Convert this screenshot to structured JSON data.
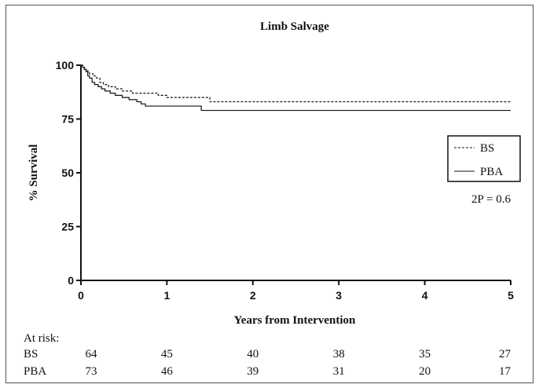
{
  "chart_data": {
    "type": "line",
    "title": "Limb Salvage",
    "xlabel": "Years from Intervention",
    "ylabel": "% Survival",
    "xlim": [
      0,
      5
    ],
    "ylim": [
      0,
      100
    ],
    "x_ticks": [
      "0",
      "1",
      "2",
      "3",
      "4",
      "5"
    ],
    "y_ticks": [
      "0",
      "25",
      "50",
      "75",
      "100"
    ],
    "grid": false,
    "legend_position": "right",
    "annotation": "2P =  0.6",
    "series": [
      {
        "name": "BS",
        "style": "dashed",
        "color": "#111111",
        "points": [
          [
            0,
            100
          ],
          [
            0.02,
            99
          ],
          [
            0.05,
            98
          ],
          [
            0.08,
            97
          ],
          [
            0.1,
            96
          ],
          [
            0.14,
            95
          ],
          [
            0.18,
            94
          ],
          [
            0.22,
            92
          ],
          [
            0.26,
            91
          ],
          [
            0.32,
            90
          ],
          [
            0.4,
            89
          ],
          [
            0.48,
            88
          ],
          [
            0.6,
            87
          ],
          [
            0.9,
            86
          ],
          [
            1.0,
            85
          ],
          [
            1.45,
            85
          ],
          [
            1.5,
            83
          ],
          [
            5.0,
            83
          ]
        ]
      },
      {
        "name": "PBA",
        "style": "solid",
        "color": "#111111",
        "points": [
          [
            0,
            100
          ],
          [
            0.02,
            99
          ],
          [
            0.04,
            98
          ],
          [
            0.06,
            97
          ],
          [
            0.08,
            95
          ],
          [
            0.1,
            94
          ],
          [
            0.13,
            92
          ],
          [
            0.16,
            91
          ],
          [
            0.2,
            90
          ],
          [
            0.24,
            89
          ],
          [
            0.28,
            88
          ],
          [
            0.34,
            87
          ],
          [
            0.4,
            86
          ],
          [
            0.48,
            85
          ],
          [
            0.56,
            84
          ],
          [
            0.65,
            83
          ],
          [
            0.7,
            82
          ],
          [
            0.75,
            81
          ],
          [
            1.35,
            81
          ],
          [
            1.4,
            79
          ],
          [
            5.0,
            79
          ]
        ]
      }
    ]
  },
  "risk_table": {
    "heading": "At risk:",
    "rows": [
      {
        "label": "BS",
        "values": [
          "64",
          "45",
          "40",
          "38",
          "35",
          "27"
        ]
      },
      {
        "label": "PBA",
        "values": [
          "73",
          "46",
          "39",
          "31",
          "20",
          "17"
        ]
      }
    ]
  }
}
